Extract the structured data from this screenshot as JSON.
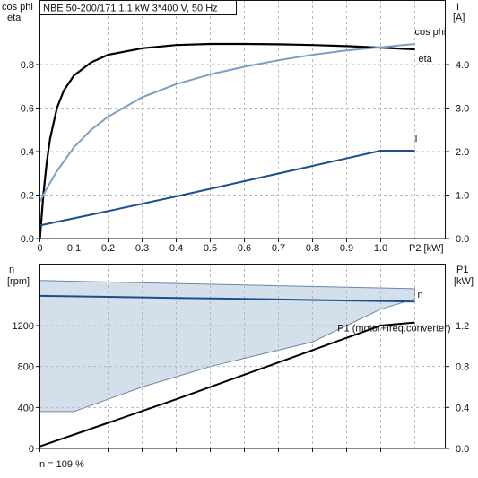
{
  "title": "NBE 50-200/171   1.1 kW   3*400 V, 50 Hz",
  "footer_text": "n = 109 %",
  "colors": {
    "eta": "#000000",
    "cos_phi": "#7a9fc4",
    "current": "#1b4f8a",
    "speed": "#1b4f8a",
    "speed_band_fill": "#d3dfeb",
    "speed_band_edge": "#6b86a8",
    "p1": "#000000"
  },
  "chart_data": [
    {
      "type": "line",
      "left_axis_labels": [
        "cos phi",
        "eta"
      ],
      "right_axis_label": "I",
      "right_axis_unit": "[A]",
      "x_axis_label": "P2 [kW]",
      "x_ticks": [
        "0",
        "0.1",
        "0.2",
        "0.3",
        "0.4",
        "0.5",
        "0.6",
        "0.7",
        "0.8",
        "0.9",
        "1.0"
      ],
      "y_left_ticks": [
        "0.0",
        "0.2",
        "0.4",
        "0.6",
        "0.8"
      ],
      "y_right_ticks": [
        "0.0",
        "1.0",
        "2.0",
        "3.0",
        "4.0"
      ],
      "xlim": [
        0,
        1.1
      ],
      "ylim_left": [
        0,
        1.0
      ],
      "ylim_right": [
        0,
        5.0
      ],
      "grid": true,
      "series": [
        {
          "name": "eta",
          "axis": "left",
          "x": [
            0.0,
            0.01,
            0.02,
            0.03,
            0.05,
            0.07,
            0.1,
            0.15,
            0.2,
            0.3,
            0.4,
            0.5,
            0.6,
            0.7,
            0.8,
            0.9,
            1.0,
            1.1
          ],
          "y": [
            0.0,
            0.2,
            0.35,
            0.46,
            0.6,
            0.68,
            0.75,
            0.81,
            0.845,
            0.875,
            0.89,
            0.895,
            0.895,
            0.893,
            0.89,
            0.885,
            0.878,
            0.87
          ]
        },
        {
          "name": "cos phi",
          "axis": "left",
          "x": [
            0.0,
            0.02,
            0.05,
            0.1,
            0.15,
            0.2,
            0.3,
            0.4,
            0.5,
            0.6,
            0.7,
            0.8,
            0.9,
            1.0,
            1.1
          ],
          "y": [
            0.17,
            0.23,
            0.31,
            0.42,
            0.5,
            0.56,
            0.65,
            0.71,
            0.755,
            0.79,
            0.82,
            0.845,
            0.865,
            0.88,
            0.895
          ]
        },
        {
          "name": "I",
          "axis": "right",
          "x": [
            0.0,
            0.2,
            0.4,
            0.6,
            0.8,
            1.0,
            1.1
          ],
          "y": [
            0.3,
            0.63,
            0.97,
            1.32,
            1.67,
            2.02,
            2.02
          ]
        }
      ]
    },
    {
      "type": "area",
      "left_axis_label": "n",
      "left_axis_unit": "[rpm]",
      "right_axis_label": "P1",
      "right_axis_unit": "[kW]",
      "y_left_ticks": [
        "0",
        "400",
        "800",
        "1200"
      ],
      "y_right_ticks": [
        "0.0",
        "0.4",
        "0.8",
        "1.2"
      ],
      "xlim": [
        0,
        1.1
      ],
      "ylim_left": [
        0,
        1650
      ],
      "ylim_right": [
        0,
        1.65
      ],
      "grid": true,
      "speed_band": {
        "x_upper": [
          0.0,
          1.1
        ],
        "y_upper": [
          1640,
          1560
        ],
        "x_lower": [
          0.0,
          0.1,
          0.2,
          0.3,
          0.4,
          0.5,
          0.6,
          0.7,
          0.8,
          0.9,
          1.0,
          1.1
        ],
        "y_lower": [
          360,
          360,
          480,
          600,
          700,
          800,
          880,
          960,
          1040,
          1200,
          1360,
          1460
        ]
      },
      "series": [
        {
          "name": "n",
          "axis": "left",
          "x": [
            0.0,
            0.2,
            0.4,
            0.6,
            0.8,
            1.0,
            1.1
          ],
          "y": [
            1490,
            1480,
            1470,
            1460,
            1450,
            1440,
            1435
          ]
        },
        {
          "name": "P1 (motor+freq.converter)",
          "axis": "right",
          "x": [
            0.0,
            0.2,
            0.4,
            0.6,
            0.8,
            1.0,
            1.1
          ],
          "y": [
            0.02,
            0.25,
            0.48,
            0.72,
            0.96,
            1.2,
            1.23
          ]
        }
      ]
    }
  ]
}
